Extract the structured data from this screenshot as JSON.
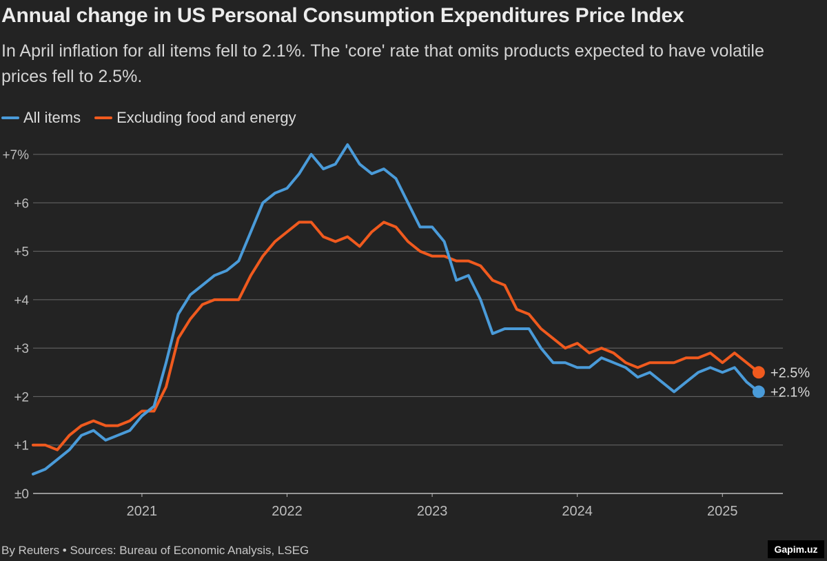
{
  "title": "Annual change in US Personal Consumption Expenditures Price Index",
  "subtitle": "In April inflation for all items fell to 2.1%. The 'core' rate that omits products expected to have volatile prices fell to 2.5%.",
  "footer": "By Reuters • Sources: Bureau of Economic Analysis, LSEG",
  "watermark": "Gapim.uz",
  "colors": {
    "background": "#232323",
    "all_items": "#4a9bd9",
    "core": "#f05a1e",
    "grid": "#6b6b6b"
  },
  "chart_data": {
    "type": "line",
    "title": "Annual change in US Personal Consumption Expenditures Price Index",
    "xlabel": "",
    "ylabel": "",
    "x_start": "2020-04",
    "x_end": "2025-04",
    "xlim": [
      "2020-04",
      "2025-06"
    ],
    "ylim": [
      0,
      7
    ],
    "grid": true,
    "legend_position": "top-left",
    "x_ticks": [
      "2021",
      "2022",
      "2023",
      "2024",
      "2025"
    ],
    "y_ticks": [
      "±0",
      "+1",
      "+2",
      "+3",
      "+4",
      "+5",
      "+6",
      "+7%"
    ],
    "series": [
      {
        "name": "All items",
        "color": "#4a9bd9",
        "end_label": "+2.1%",
        "values": [
          0.4,
          0.5,
          0.7,
          0.9,
          1.2,
          1.3,
          1.1,
          1.2,
          1.3,
          1.6,
          1.8,
          2.7,
          3.7,
          4.1,
          4.3,
          4.5,
          4.6,
          4.8,
          5.4,
          6.0,
          6.2,
          6.3,
          6.6,
          7.0,
          6.7,
          6.8,
          7.2,
          6.8,
          6.6,
          6.7,
          6.5,
          6.0,
          5.5,
          5.5,
          5.2,
          4.4,
          4.5,
          4.0,
          3.3,
          3.4,
          3.4,
          3.4,
          3.0,
          2.7,
          2.7,
          2.6,
          2.6,
          2.8,
          2.7,
          2.6,
          2.4,
          2.5,
          2.3,
          2.1,
          2.3,
          2.5,
          2.6,
          2.5,
          2.6,
          2.3,
          2.1
        ]
      },
      {
        "name": "Excluding food and energy",
        "color": "#f05a1e",
        "end_label": "+2.5%",
        "values": [
          1.0,
          1.0,
          0.9,
          1.2,
          1.4,
          1.5,
          1.4,
          1.4,
          1.5,
          1.7,
          1.7,
          2.2,
          3.2,
          3.6,
          3.9,
          4.0,
          4.0,
          4.0,
          4.5,
          4.9,
          5.2,
          5.4,
          5.6,
          5.6,
          5.3,
          5.2,
          5.3,
          5.1,
          5.4,
          5.6,
          5.5,
          5.2,
          5.0,
          4.9,
          4.9,
          4.8,
          4.8,
          4.7,
          4.4,
          4.3,
          3.8,
          3.7,
          3.4,
          3.2,
          3.0,
          3.1,
          2.9,
          3.0,
          2.9,
          2.7,
          2.6,
          2.7,
          2.7,
          2.7,
          2.8,
          2.8,
          2.9,
          2.7,
          2.9,
          2.7,
          2.5
        ]
      }
    ]
  }
}
